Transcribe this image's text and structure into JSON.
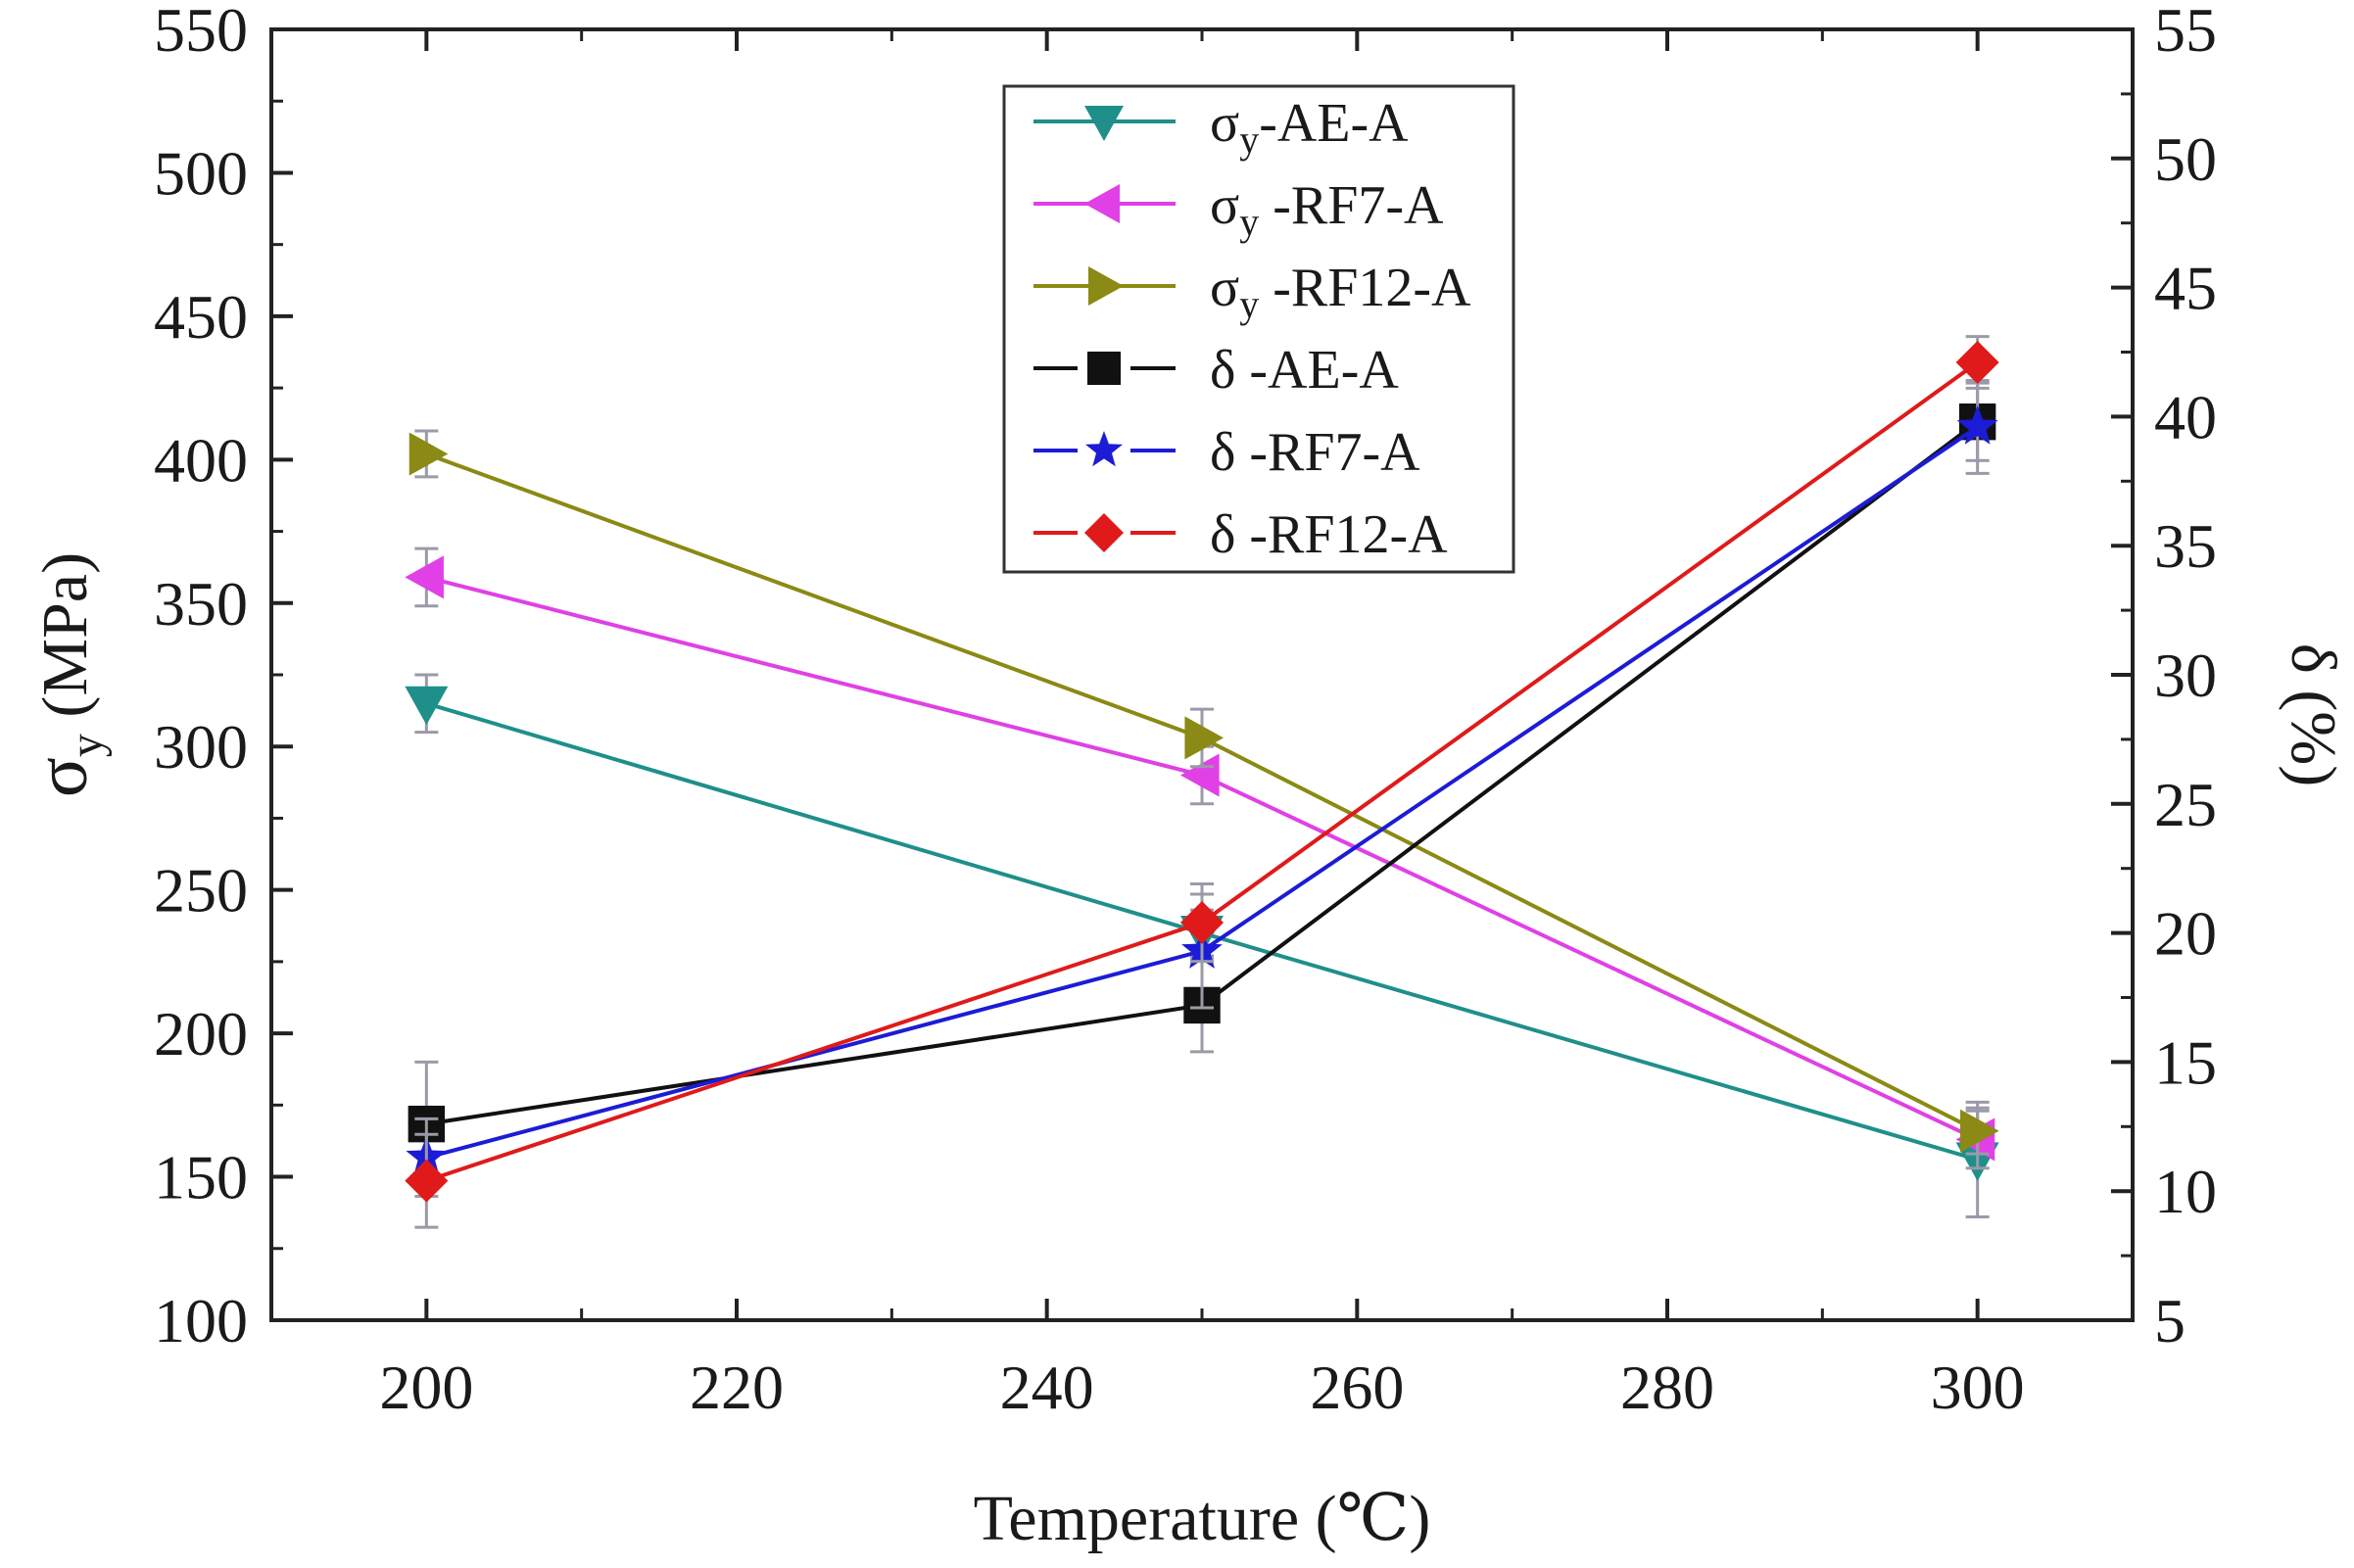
{
  "chart_data": {
    "type": "line",
    "title": "",
    "xlabel": "Temperature (℃)",
    "ylabel_left": {
      "symbol": "σ",
      "sub": "y",
      "unit": " (MPa)"
    },
    "ylabel_right": "δ (%)",
    "x": [
      200,
      250,
      300
    ],
    "xlim": [
      190,
      310
    ],
    "ylim_left": [
      100,
      550
    ],
    "ylim_right": [
      5,
      55
    ],
    "xticks": [
      "200",
      "220",
      "240",
      "260",
      "280",
      "300"
    ],
    "yticks_left": [
      "100",
      "150",
      "200",
      "250",
      "300",
      "350",
      "400",
      "450",
      "500",
      "550"
    ],
    "yticks_right": [
      "5",
      "10",
      "15",
      "20",
      "25",
      "30",
      "35",
      "40",
      "45",
      "50",
      "55"
    ],
    "legend_position": "top-center",
    "series": [
      {
        "name": "AE-A",
        "legend": {
          "symbol": "σ",
          "sub": "y",
          "label": "-AE-A"
        },
        "axis": "left",
        "color": "#1f8f8a",
        "marker": "triangle-down",
        "values": [
          315,
          235,
          156
        ],
        "errors": [
          10,
          8,
          20
        ]
      },
      {
        "name": "RF7-A",
        "legend": {
          "symbol": "σ",
          "sub": "y",
          "label": " -RF7-A"
        },
        "axis": "left",
        "color": "#e040e6",
        "marker": "triangle-left",
        "values": [
          359,
          290,
          163
        ],
        "errors": [
          10,
          10,
          10
        ]
      },
      {
        "name": "RF12-A",
        "legend": {
          "symbol": "σ",
          "sub": "y",
          "label": " -RF12-A"
        },
        "axis": "left",
        "color": "#8a8a14",
        "marker": "triangle-right",
        "values": [
          402,
          303,
          166
        ],
        "errors": [
          8,
          10,
          8
        ]
      },
      {
        "name": "delta AE-A",
        "legend": {
          "symbol": "δ",
          "sub": "",
          "label": "  -AE-A"
        },
        "axis": "right",
        "color": "#111111",
        "marker": "square",
        "values": [
          12.6,
          17.2,
          39.8
        ],
        "errors": [
          2.4,
          1.8,
          1.5
        ]
      },
      {
        "name": "delta RF7-A",
        "legend": {
          "symbol": "δ",
          "sub": "",
          "label": "  -RF7-A"
        },
        "axis": "right",
        "color": "#1c1cd6",
        "marker": "star",
        "values": [
          11.3,
          19.3,
          39.6
        ],
        "errors": [
          1.5,
          2.2,
          1.8
        ]
      },
      {
        "name": "delta RF12-A",
        "legend": {
          "symbol": "δ",
          "sub": "",
          "label": "  -RF12-A"
        },
        "axis": "right",
        "color": "#e01a1a",
        "marker": "diamond",
        "values": [
          10.4,
          20.4,
          42.1
        ],
        "errors": [
          1.8,
          1.5,
          1.0
        ]
      }
    ]
  }
}
